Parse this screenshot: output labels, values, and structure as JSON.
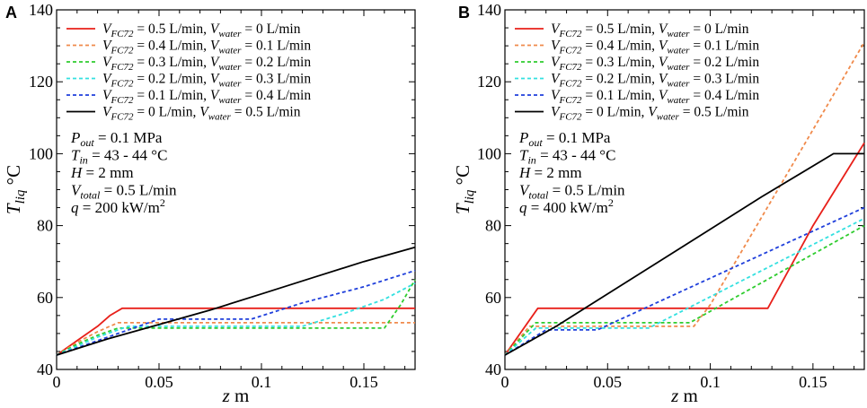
{
  "chart_data": [
    {
      "type": "line",
      "panel_label": "A",
      "xlabel_var": "z",
      "xlabel_unit": "m",
      "ylabel_var": "T",
      "ylabel_sub": "liq",
      "ylabel_unit": "°C",
      "xlim": [
        0,
        0.175
      ],
      "ylim": [
        40,
        140
      ],
      "xticks": [
        0,
        0.05,
        0.1,
        0.15
      ],
      "xtick_labels": [
        "0",
        "0.05",
        "0.1",
        "0.15"
      ],
      "yticks": [
        40,
        60,
        80,
        100,
        120,
        140
      ],
      "ytick_labels": [
        "40",
        "60",
        "80",
        "100",
        "120",
        "140"
      ],
      "legend_position": "top-left",
      "annotations": [
        {
          "var": "P",
          "sub": "out",
          "sup": "",
          "rest": " = 0.1 MPa",
          "rest_sup": ""
        },
        {
          "var": "T",
          "sub": "in",
          "sup": "",
          "rest": " = 43 - 44 °C",
          "rest_sup": ""
        },
        {
          "var": "H",
          "sub": "",
          "sup": "",
          "rest": " = 2 mm",
          "rest_sup": ""
        },
        {
          "var": "V",
          "sub": "total",
          "sup": "",
          "rest": " = 0.5 L/min",
          "rest_sup": ""
        },
        {
          "var": "q",
          "sub": "",
          "sup": "",
          "rest": " = 200 kW/m",
          "rest_sup": "2"
        }
      ],
      "series": [
        {
          "name": "V_FC72 = 0.5 L/min, V_water = 0 L/min",
          "fc_val": " = 0.5 L/min, ",
          "w_val": " = 0 L/min",
          "color": "#e8201a",
          "dash": "",
          "x": [
            0,
            0.01,
            0.02,
            0.026,
            0.032,
            0.175
          ],
          "y": [
            44,
            48,
            52,
            55,
            57,
            57
          ]
        },
        {
          "name": "V_FC72 = 0.4 L/min, V_water = 0.1 L/min",
          "fc_val": " = 0.4 L/min, ",
          "w_val": " = 0.1 L/min",
          "color": "#f08a4b",
          "dash": "4,3",
          "x": [
            0,
            0.01,
            0.02,
            0.03,
            0.175
          ],
          "y": [
            44,
            47.5,
            50.5,
            53,
            53
          ]
        },
        {
          "name": "V_FC72 = 0.3 L/min, V_water = 0.2 L/min",
          "fc_val": " = 0.3 L/min, ",
          "w_val": " = 0.2 L/min",
          "color": "#2ecc2e",
          "dash": "4,3",
          "x": [
            0,
            0.01,
            0.02,
            0.03,
            0.16,
            0.168,
            0.175
          ],
          "y": [
            44,
            47,
            49.5,
            51.5,
            51.5,
            58,
            65
          ]
        },
        {
          "name": "V_FC72 = 0.2 L/min, V_water = 0.3 L/min",
          "fc_val": " = 0.2 L/min, ",
          "w_val": " = 0.3 L/min",
          "color": "#33e0e0",
          "dash": "4,3",
          "x": [
            0,
            0.01,
            0.02,
            0.035,
            0.12,
            0.14,
            0.16,
            0.175
          ],
          "y": [
            44,
            46.5,
            49,
            52,
            52,
            55.5,
            59.5,
            64
          ]
        },
        {
          "name": "V_FC72 = 0.1 L/min, V_water = 0.4 L/min",
          "fc_val": " = 0.1 L/min, ",
          "w_val": " = 0.4 L/min",
          "color": "#1f3fdb",
          "dash": "4,3",
          "x": [
            0,
            0.01,
            0.02,
            0.03,
            0.04,
            0.05,
            0.095,
            0.12,
            0.15,
            0.175
          ],
          "y": [
            44,
            46,
            48,
            50,
            52,
            54,
            54,
            58.5,
            63,
            67.5
          ]
        },
        {
          "name": "V_FC72 = 0 L/min, V_water = 0.5 L/min",
          "fc_val": " = 0 L/min, ",
          "w_val": " = 0.5 L/min",
          "color": "#000000",
          "dash": "",
          "x": [
            0,
            0.025,
            0.05,
            0.075,
            0.1,
            0.125,
            0.15,
            0.175
          ],
          "y": [
            44,
            48.5,
            52.5,
            56.5,
            61,
            65.5,
            70,
            74
          ]
        }
      ]
    },
    {
      "type": "line",
      "panel_label": "B",
      "xlabel_var": "z",
      "xlabel_unit": "m",
      "ylabel_var": "T",
      "ylabel_sub": "liq",
      "ylabel_unit": "°C",
      "xlim": [
        0,
        0.175
      ],
      "ylim": [
        40,
        140
      ],
      "xticks": [
        0,
        0.05,
        0.1,
        0.15
      ],
      "xtick_labels": [
        "0",
        "0.05",
        "0.1",
        "0.15"
      ],
      "yticks": [
        40,
        60,
        80,
        100,
        120,
        140
      ],
      "ytick_labels": [
        "40",
        "60",
        "80",
        "100",
        "120",
        "140"
      ],
      "legend_position": "top-left",
      "annotations": [
        {
          "var": "P",
          "sub": "out",
          "sup": "",
          "rest": " = 0.1 MPa",
          "rest_sup": ""
        },
        {
          "var": "T",
          "sub": "in",
          "sup": "",
          "rest": " = 43 - 44 °C",
          "rest_sup": ""
        },
        {
          "var": "H",
          "sub": "",
          "sup": "",
          "rest": " = 2 mm",
          "rest_sup": ""
        },
        {
          "var": "V",
          "sub": "total",
          "sup": "",
          "rest": " = 0.5 L/min",
          "rest_sup": ""
        },
        {
          "var": "q",
          "sub": "",
          "sup": "",
          "rest": " = 400 kW/m",
          "rest_sup": "2"
        }
      ],
      "series": [
        {
          "name": "V_FC72 = 0.5 L/min, V_water = 0 L/min",
          "fc_val": " = 0.5 L/min, ",
          "w_val": " = 0 L/min",
          "color": "#e8201a",
          "dash": "",
          "x": [
            0,
            0.016,
            0.128,
            0.15,
            0.175
          ],
          "y": [
            44,
            57,
            57,
            80,
            103
          ]
        },
        {
          "name": "V_FC72 = 0.4 L/min, V_water = 0.1 L/min",
          "fc_val": " = 0.4 L/min, ",
          "w_val": " = 0.1 L/min",
          "color": "#f08a4b",
          "dash": "4,3",
          "x": [
            0,
            0.012,
            0.092,
            0.1,
            0.175
          ],
          "y": [
            44,
            52,
            52,
            58,
            131
          ]
        },
        {
          "name": "V_FC72 = 0.3 L/min, V_water = 0.2 L/min",
          "fc_val": " = 0.3 L/min, ",
          "w_val": " = 0.2 L/min",
          "color": "#2ecc2e",
          "dash": "4,3",
          "x": [
            0,
            0.015,
            0.09,
            0.175
          ],
          "y": [
            44,
            53,
            53,
            80
          ]
        },
        {
          "name": "V_FC72 = 0.2 L/min, V_water = 0.3 L/min",
          "fc_val": " = 0.2 L/min, ",
          "w_val": " = 0.3 L/min",
          "color": "#33e0e0",
          "dash": "4,3",
          "x": [
            0,
            0.015,
            0.07,
            0.175
          ],
          "y": [
            44,
            51.5,
            51.5,
            82
          ]
        },
        {
          "name": "V_FC72 = 0.1 L/min, V_water = 0.4 L/min",
          "fc_val": " = 0.1 L/min, ",
          "w_val": " = 0.4 L/min",
          "color": "#1f3fdb",
          "dash": "4,3",
          "x": [
            0,
            0.01,
            0.02,
            0.045,
            0.175
          ],
          "y": [
            44,
            47.5,
            51,
            51,
            85
          ]
        },
        {
          "name": "V_FC72 = 0 L/min, V_water = 0.5 L/min",
          "fc_val": " = 0 L/min, ",
          "w_val": " = 0.5 L/min",
          "color": "#000000",
          "dash": "",
          "x": [
            0,
            0.025,
            0.05,
            0.075,
            0.1,
            0.125,
            0.16,
            0.175
          ],
          "y": [
            44,
            52,
            61,
            70,
            79,
            88,
            100,
            100
          ]
        }
      ]
    }
  ]
}
